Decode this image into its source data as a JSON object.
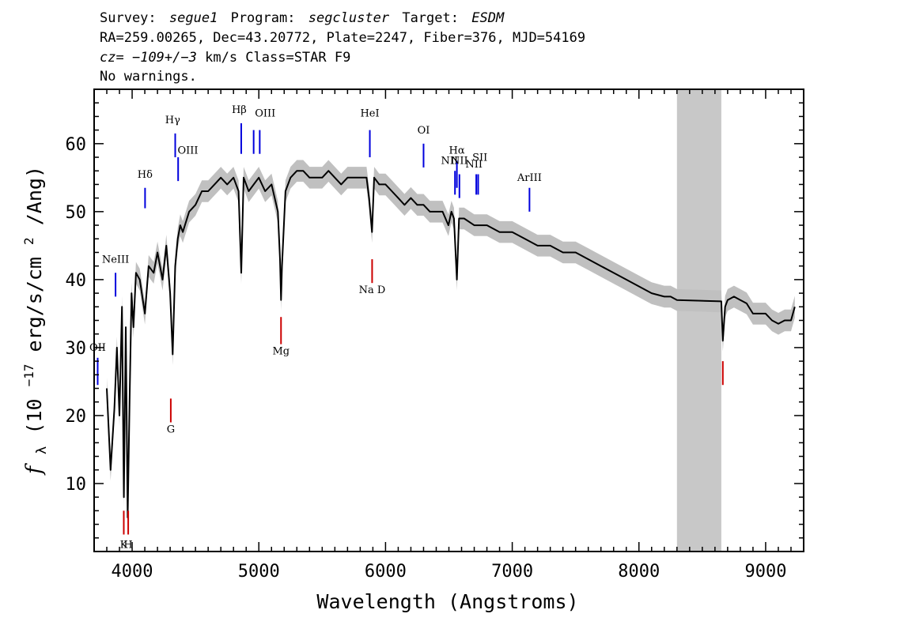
{
  "header": {
    "line1": {
      "survey_label": "Survey:",
      "survey": "segue1",
      "program_label": "Program:",
      "program": "segcluster",
      "target_label": "Target:",
      "target": "ESDM"
    },
    "line2": "RA=259.00265, Dec=43.20772, Plate=2247, Fiber=376, MJD=54169",
    "line3": {
      "cz_label": "cz=",
      "cz_value": "−109+/−3",
      "rest": " km/s Class=STAR F9"
    },
    "line4": "No warnings."
  },
  "chart_data": {
    "type": "line",
    "xlabel": "Wavelength (Angstroms)",
    "ylabel_parts": {
      "f": "f",
      "sub": "λ",
      "pre": " (10",
      "exp": "−17",
      "mid": " erg/s/cm",
      "exp2": "2",
      "post": "/Ang)"
    },
    "xlim": [
      3700,
      9300
    ],
    "ylim": [
      0,
      68
    ],
    "x_ticks": [
      4000,
      5000,
      6000,
      7000,
      8000,
      9000
    ],
    "y_ticks": [
      10,
      20,
      30,
      40,
      50,
      60
    ],
    "masked_region": [
      8300,
      8650
    ],
    "colors": {
      "spectrum": "#000000",
      "error_band": "#c0c0c0",
      "mask": "#c8c8c8",
      "emission": "#0000dd",
      "absorption": "#cc0000"
    },
    "spectrum": {
      "x": [
        3800,
        3830,
        3860,
        3880,
        3900,
        3920,
        3935,
        3950,
        3965,
        3980,
        3995,
        4010,
        4030,
        4060,
        4101,
        4130,
        4170,
        4200,
        4240,
        4270,
        4300,
        4320,
        4340,
        4360,
        4380,
        4400,
        4450,
        4500,
        4550,
        4600,
        4650,
        4700,
        4750,
        4800,
        4840,
        4861,
        4880,
        4920,
        4960,
        5000,
        5050,
        5100,
        5150,
        5167,
        5175,
        5183,
        5210,
        5250,
        5300,
        5350,
        5400,
        5450,
        5500,
        5550,
        5600,
        5650,
        5700,
        5750,
        5800,
        5850,
        5870,
        5893,
        5910,
        5950,
        6000,
        6050,
        6100,
        6150,
        6200,
        6250,
        6300,
        6350,
        6400,
        6450,
        6496,
        6520,
        6540,
        6563,
        6580,
        6620,
        6700,
        6800,
        6900,
        7000,
        7100,
        7200,
        7300,
        7400,
        7500,
        7600,
        7700,
        7800,
        7900,
        8000,
        8100,
        8200,
        8250,
        8300,
        8650,
        8662,
        8680,
        8700,
        8750,
        8800,
        8850,
        8900,
        8950,
        9000,
        9050,
        9100,
        9150,
        9200,
        9230
      ],
      "y": [
        24,
        12,
        21,
        30,
        20,
        36,
        8,
        33,
        5,
        22,
        38,
        33,
        41,
        40,
        35,
        42,
        41,
        44,
        40,
        45,
        38,
        29,
        42,
        46,
        48,
        47,
        50,
        51,
        53,
        53,
        54,
        55,
        54,
        55,
        53,
        41,
        55,
        53,
        54,
        55,
        53,
        54,
        50,
        43,
        37,
        42,
        53,
        55,
        56,
        56,
        55,
        55,
        55,
        56,
        55,
        54,
        55,
        55,
        55,
        55,
        52,
        47,
        55,
        54,
        54,
        53,
        52,
        51,
        52,
        51,
        51,
        50,
        50,
        50,
        48,
        50,
        49,
        40,
        49,
        49,
        48,
        48,
        47,
        47,
        46,
        45,
        45,
        44,
        44,
        43,
        42,
        41,
        40,
        39,
        38,
        37.5,
        37.5,
        37,
        36.8,
        31,
        36,
        37,
        37.5,
        37,
        36.5,
        35,
        35,
        35,
        34,
        33.5,
        34,
        34,
        36
      ]
    },
    "emission_lines": [
      {
        "name": "NeIII",
        "x": 3869,
        "ylo": 37.5,
        "yhi": 41,
        "lx": 3869,
        "ly": 42.5
      },
      {
        "name": "OII",
        "x": 3728,
        "ylo": 24.5,
        "yhi": 28.5,
        "lx": 3728,
        "ly": 29.5
      },
      {
        "name": "Hδ",
        "x": 4102,
        "ylo": 50.5,
        "yhi": 53.5,
        "lx": 4102,
        "ly": 55
      },
      {
        "name": "Hγ",
        "x": 4340,
        "ylo": 58,
        "yhi": 61.5,
        "lx": 4320,
        "ly": 63
      },
      {
        "name": "OIII",
        "x": 4363,
        "ylo": 54.5,
        "yhi": 58,
        "lx": 4440,
        "ly": 58.5
      },
      {
        "name": "Hβ",
        "x": 4861,
        "ylo": 58.5,
        "yhi": 63,
        "lx": 4845,
        "ly": 64.5
      },
      {
        "name": "OIII",
        "x": 4959,
        "ylo": 58.5,
        "yhi": 62,
        "lx": 5050,
        "ly": 64
      },
      {
        "name": "OIII",
        "x": 5007,
        "ylo": 58.5,
        "yhi": 62,
        "lx": 5050,
        "ly": 64
      },
      {
        "name": "HeI",
        "x": 5876,
        "ylo": 58,
        "yhi": 62,
        "lx": 5876,
        "ly": 64
      },
      {
        "name": "OI",
        "x": 6300,
        "ylo": 56.5,
        "yhi": 60,
        "lx": 6300,
        "ly": 61.5
      },
      {
        "name": "NII",
        "x": 6548,
        "ylo": 52.5,
        "yhi": 56,
        "lx": 6505,
        "ly": 57
      },
      {
        "name": "Hα",
        "x": 6563,
        "ylo": 53.5,
        "yhi": 57.5,
        "lx": 6563,
        "ly": 58.5
      },
      {
        "name": "NII",
        "x": 6583,
        "ylo": 52,
        "yhi": 55.5,
        "lx": 6583,
        "ly": 57
      },
      {
        "name": "SII",
        "x": 6716,
        "ylo": 52.5,
        "yhi": 55.5,
        "lx": 6745,
        "ly": 57.5
      },
      {
        "name": "SII",
        "x": 6731,
        "ylo": 52.5,
        "yhi": 55.5,
        "lx": 6745,
        "ly": 57.5
      },
      {
        "name": "NII",
        "x": 6720,
        "ylo": 52.5,
        "yhi": 52.5,
        "lx": 6698,
        "ly": 56.5
      },
      {
        "name": "ArIII",
        "x": 7136,
        "ylo": 50,
        "yhi": 53.5,
        "lx": 7136,
        "ly": 54.5
      }
    ],
    "absorption_lines": [
      {
        "name": "K",
        "x": 3934,
        "ylo": 2.5,
        "yhi": 6,
        "lx": 3934,
        "ly": 0.5
      },
      {
        "name": "H",
        "x": 3969,
        "ylo": 2.5,
        "yhi": 6,
        "lx": 3969,
        "ly": 0.5
      },
      {
        "name": "G",
        "x": 4305,
        "ylo": 19,
        "yhi": 22.5,
        "lx": 4305,
        "ly": 17.5
      },
      {
        "name": "Mg",
        "x": 5175,
        "ylo": 30.5,
        "yhi": 34.5,
        "lx": 5175,
        "ly": 29
      },
      {
        "name": "Na D",
        "x": 5894,
        "ylo": 39.5,
        "yhi": 43,
        "lx": 5894,
        "ly": 38
      },
      {
        "name": "",
        "x": 8662,
        "ylo": 24.5,
        "yhi": 28,
        "lx": 8662,
        "ly": 24
      }
    ]
  }
}
